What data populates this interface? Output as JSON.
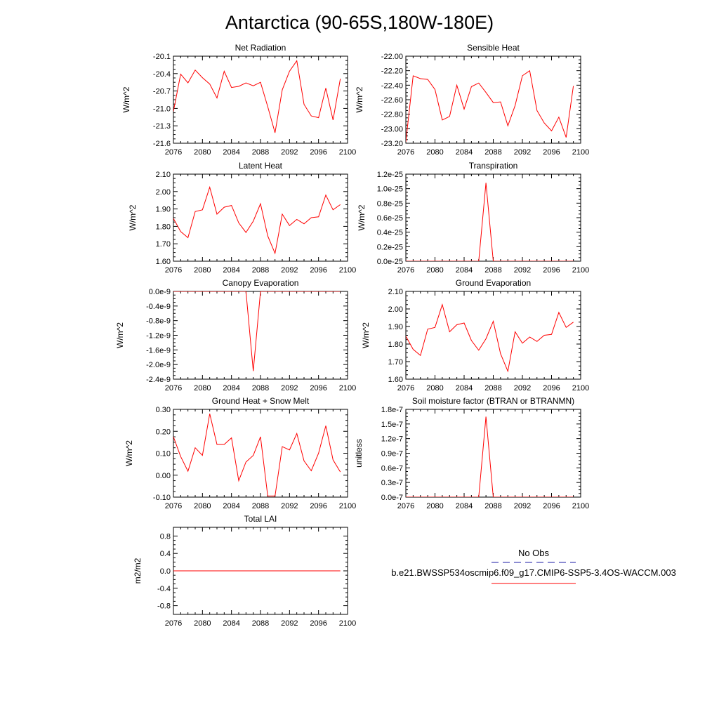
{
  "title": "Antarctica (90-65S,180W-180E)",
  "colors": {
    "series": "#ff0000",
    "obs": "#1a1aa6",
    "axis": "#000000"
  },
  "legend": {
    "obs_label": "No Obs",
    "case_label": "b.e21.BWSSP534oscmip6.f09_g17.CMIP6-SSP5-3.4OS-WACCM.003"
  },
  "chart_data": [
    {
      "type": "line",
      "title": "Net Radiation",
      "ylabel": "W/m^2",
      "xlim": [
        2076,
        2100
      ],
      "xticks": [
        "2076",
        "2080",
        "2084",
        "2088",
        "2092",
        "2096",
        "2100"
      ],
      "ylim": [
        -21.6,
        -20.1
      ],
      "yticks": [
        "-21.6",
        "-21.3",
        "-21.0",
        "-20.7",
        "-20.4",
        "-20.1"
      ],
      "x": [
        2075,
        2076,
        2077,
        2078,
        2079,
        2080,
        2081,
        2082,
        2083,
        2084,
        2085,
        2086,
        2087,
        2088,
        2089,
        2090,
        2091,
        2092,
        2093,
        2094,
        2095,
        2096,
        2097,
        2098,
        2099
      ],
      "values": [
        -20.3,
        -21.05,
        -20.41,
        -20.56,
        -20.34,
        -20.47,
        -20.58,
        -20.82,
        -20.36,
        -20.64,
        -20.62,
        -20.56,
        -20.61,
        -20.55,
        -20.97,
        -21.42,
        -20.68,
        -20.36,
        -20.18,
        -20.93,
        -21.13,
        -21.16,
        -20.65,
        -21.2,
        -20.49
      ]
    },
    {
      "type": "line",
      "title": "Sensible Heat",
      "ylabel": "W/m^2",
      "xlim": [
        2076,
        2100
      ],
      "xticks": [
        "2076",
        "2080",
        "2084",
        "2088",
        "2092",
        "2096",
        "2100"
      ],
      "ylim": [
        -23.2,
        -22.0
      ],
      "yticks": [
        "-23.20",
        "-23.00",
        "-22.80",
        "-22.60",
        "-22.40",
        "-22.20",
        "-22.00"
      ],
      "x": [
        2075,
        2076,
        2077,
        2078,
        2079,
        2080,
        2081,
        2082,
        2083,
        2084,
        2085,
        2086,
        2087,
        2088,
        2089,
        2090,
        2091,
        2092,
        2093,
        2094,
        2095,
        2096,
        2097,
        2098,
        2099
      ],
      "values": [
        -22.3,
        -23.18,
        -22.27,
        -22.31,
        -22.32,
        -22.46,
        -22.88,
        -22.83,
        -22.4,
        -22.73,
        -22.42,
        -22.37,
        -22.5,
        -22.64,
        -22.63,
        -22.96,
        -22.68,
        -22.27,
        -22.2,
        -22.75,
        -22.92,
        -23.03,
        -22.84,
        -23.12,
        -22.41
      ]
    },
    {
      "type": "line",
      "title": "Latent Heat",
      "ylabel": "W/m^2",
      "xlim": [
        2076,
        2100
      ],
      "xticks": [
        "2076",
        "2080",
        "2084",
        "2088",
        "2092",
        "2096",
        "2100"
      ],
      "ylim": [
        1.6,
        2.1
      ],
      "yticks": [
        "1.60",
        "1.70",
        "1.80",
        "1.90",
        "2.00",
        "2.10"
      ],
      "x": [
        2075,
        2076,
        2077,
        2078,
        2079,
        2080,
        2081,
        2082,
        2083,
        2084,
        2085,
        2086,
        2087,
        2088,
        2089,
        2090,
        2091,
        2092,
        2093,
        2094,
        2095,
        2096,
        2097,
        2098,
        2099
      ],
      "values": [
        1.9,
        1.845,
        1.77,
        1.735,
        1.885,
        1.895,
        2.025,
        1.87,
        1.91,
        1.92,
        1.82,
        1.765,
        1.83,
        1.93,
        1.745,
        1.645,
        1.87,
        1.805,
        1.84,
        1.815,
        1.85,
        1.855,
        1.98,
        1.895,
        1.925
      ]
    },
    {
      "type": "line",
      "title": "Transpiration",
      "ylabel": "W/m^2",
      "xlim": [
        2076,
        2100
      ],
      "xticks": [
        "2076",
        "2080",
        "2084",
        "2088",
        "2092",
        "2096",
        "2100"
      ],
      "ylim": [
        0,
        1.2e-25
      ],
      "yticks": [
        "0.0e-25",
        "0.2e-25",
        "0.4e-25",
        "0.6e-25",
        "0.8e-25",
        "1.0e-25",
        "1.2e-25"
      ],
      "x": [
        2075,
        2076,
        2077,
        2078,
        2079,
        2080,
        2081,
        2082,
        2083,
        2084,
        2085,
        2086,
        2087,
        2088,
        2089,
        2090,
        2091,
        2092,
        2093,
        2094,
        2095,
        2096,
        2097,
        2098,
        2099
      ],
      "values": [
        0,
        0,
        0,
        0,
        0,
        0,
        0,
        0,
        0,
        0,
        0,
        0,
        1.08e-25,
        0,
        0,
        0,
        0,
        0,
        0,
        0,
        0,
        0,
        0,
        0,
        0
      ]
    },
    {
      "type": "line",
      "title": "Canopy Evaporation",
      "ylabel": "W/m^2",
      "xlim": [
        2076,
        2100
      ],
      "xticks": [
        "2076",
        "2080",
        "2084",
        "2088",
        "2092",
        "2096",
        "2100"
      ],
      "ylim": [
        -2.4e-09,
        0
      ],
      "yticks": [
        "-2.4e-9",
        "-2.0e-9",
        "-1.6e-9",
        "-1.2e-9",
        "-0.8e-9",
        "-0.4e-9",
        "0.0e-9"
      ],
      "x": [
        2075,
        2076,
        2077,
        2078,
        2079,
        2080,
        2081,
        2082,
        2083,
        2084,
        2085,
        2086,
        2087,
        2088,
        2089,
        2090,
        2091,
        2092,
        2093,
        2094,
        2095,
        2096,
        2097,
        2098,
        2099
      ],
      "values": [
        0,
        0,
        0,
        0,
        0,
        0,
        0,
        0,
        0,
        0,
        0,
        0,
        -2.18e-09,
        0,
        0,
        0,
        0,
        0,
        0,
        0,
        0,
        0,
        0,
        0,
        0
      ]
    },
    {
      "type": "line",
      "title": "Ground Evaporation",
      "ylabel": "W/m^2",
      "xlim": [
        2076,
        2100
      ],
      "xticks": [
        "2076",
        "2080",
        "2084",
        "2088",
        "2092",
        "2096",
        "2100"
      ],
      "ylim": [
        1.6,
        2.1
      ],
      "yticks": [
        "1.60",
        "1.70",
        "1.80",
        "1.90",
        "2.00",
        "2.10"
      ],
      "x": [
        2075,
        2076,
        2077,
        2078,
        2079,
        2080,
        2081,
        2082,
        2083,
        2084,
        2085,
        2086,
        2087,
        2088,
        2089,
        2090,
        2091,
        2092,
        2093,
        2094,
        2095,
        2096,
        2097,
        2098,
        2099
      ],
      "values": [
        1.9,
        1.845,
        1.77,
        1.735,
        1.885,
        1.895,
        2.025,
        1.87,
        1.91,
        1.92,
        1.82,
        1.765,
        1.83,
        1.93,
        1.745,
        1.645,
        1.87,
        1.805,
        1.84,
        1.815,
        1.85,
        1.855,
        1.98,
        1.895,
        1.925
      ]
    },
    {
      "type": "line",
      "title": "Ground Heat + Snow Melt",
      "ylabel": "W/m^2",
      "xlim": [
        2076,
        2100
      ],
      "xticks": [
        "2076",
        "2080",
        "2084",
        "2088",
        "2092",
        "2096",
        "2100"
      ],
      "ylim": [
        -0.1,
        0.3
      ],
      "yticks": [
        "-0.10",
        "0.00",
        "0.10",
        "0.20",
        "0.30"
      ],
      "x": [
        2075,
        2076,
        2077,
        2078,
        2079,
        2080,
        2081,
        2082,
        2083,
        2084,
        2085,
        2086,
        2087,
        2088,
        2089,
        2090,
        2091,
        2092,
        2093,
        2094,
        2095,
        2096,
        2097,
        2098,
        2099
      ],
      "values": [
        0.2,
        0.175,
        0.085,
        0.018,
        0.125,
        0.09,
        0.28,
        0.14,
        0.14,
        0.17,
        -0.025,
        0.06,
        0.09,
        0.175,
        -0.095,
        -0.095,
        0.13,
        0.115,
        0.19,
        0.065,
        0.02,
        0.1,
        0.225,
        0.07,
        0.015
      ]
    },
    {
      "type": "line",
      "title": "Soil moisture factor (BTRAN or BTRANMN)",
      "ylabel": "unitless",
      "xlim": [
        2076,
        2100
      ],
      "xticks": [
        "2076",
        "2080",
        "2084",
        "2088",
        "2092",
        "2096",
        "2100"
      ],
      "ylim": [
        0,
        1.8e-07
      ],
      "yticks": [
        "0.0e-7",
        "0.3e-7",
        "0.6e-7",
        "0.9e-7",
        "1.2e-7",
        "1.5e-7",
        "1.8e-7"
      ],
      "x": [
        2075,
        2076,
        2077,
        2078,
        2079,
        2080,
        2081,
        2082,
        2083,
        2084,
        2085,
        2086,
        2087,
        2088,
        2089,
        2090,
        2091,
        2092,
        2093,
        2094,
        2095,
        2096,
        2097,
        2098,
        2099
      ],
      "values": [
        0,
        0,
        0,
        0,
        0,
        0,
        0,
        0,
        0,
        0,
        0,
        0,
        1.65e-07,
        0,
        0,
        0,
        0,
        0,
        0,
        0,
        0,
        0,
        0,
        0,
        0
      ]
    },
    {
      "type": "line",
      "title": "Total LAI",
      "ylabel": "m2/m2",
      "xlim": [
        2076,
        2100
      ],
      "xticks": [
        "2076",
        "2080",
        "2084",
        "2088",
        "2092",
        "2096",
        "2100"
      ],
      "ylim": [
        -1.0,
        1.0
      ],
      "yticks": [
        "-0.8",
        "-0.4",
        "0.0",
        "0.4",
        "0.8"
      ],
      "ytick_values": [
        -0.8,
        -0.4,
        0.0,
        0.4,
        0.8
      ],
      "x": [
        2075,
        2076,
        2077,
        2078,
        2079,
        2080,
        2081,
        2082,
        2083,
        2084,
        2085,
        2086,
        2087,
        2088,
        2089,
        2090,
        2091,
        2092,
        2093,
        2094,
        2095,
        2096,
        2097,
        2098,
        2099
      ],
      "values": [
        0,
        0,
        0,
        0,
        0,
        0,
        0,
        0,
        0,
        0,
        0,
        0,
        0,
        0,
        0,
        0,
        0,
        0,
        0,
        0,
        0,
        0,
        0,
        0,
        0
      ]
    }
  ]
}
